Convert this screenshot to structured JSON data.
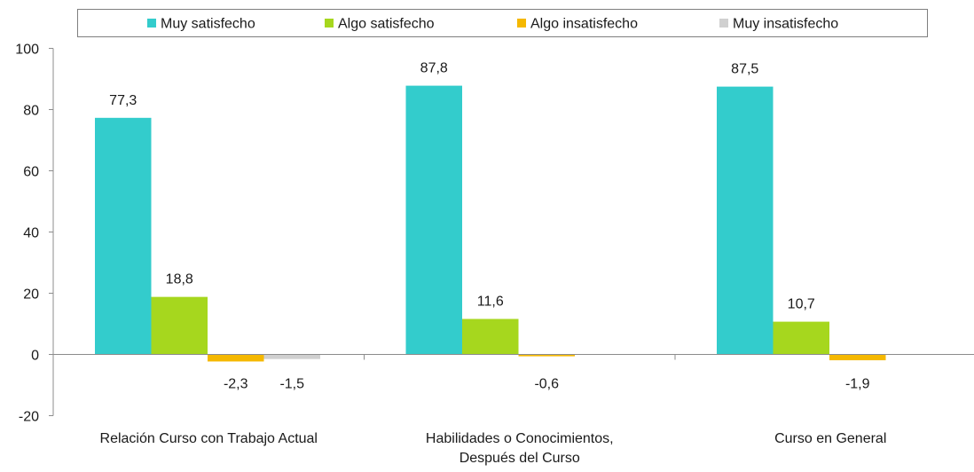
{
  "chart_data": {
    "type": "bar",
    "categories": [
      [
        "Relación Curso con Trabajo Actual"
      ],
      [
        "Habilidades o Conocimientos,",
        "Después del Curso"
      ],
      [
        "Curso en General"
      ]
    ],
    "series": [
      {
        "name": "Muy satisfecho",
        "color": "#33CCCC",
        "values": [
          77.3,
          87.8,
          87.5
        ],
        "labels": [
          "77,3",
          "87,8",
          "87,5"
        ]
      },
      {
        "name": "Algo satisfecho",
        "color": "#A6D71E",
        "values": [
          18.8,
          11.6,
          10.7
        ],
        "labels": [
          "18,8",
          "11,6",
          "10,7"
        ]
      },
      {
        "name": "Algo insatisfecho",
        "color": "#F5B800",
        "values": [
          -2.3,
          -0.6,
          -1.9
        ],
        "labels": [
          "-2,3",
          "-0,6",
          "-1,9"
        ]
      },
      {
        "name": "Muy insatisfecho",
        "color": "#D0D0D0",
        "values": [
          -1.5,
          null,
          null
        ],
        "labels": [
          "-1,5",
          null,
          null
        ]
      }
    ],
    "yticks": [
      "100",
      "80",
      "60",
      "40",
      "20",
      "0",
      "-20"
    ],
    "ylim": [
      -20,
      100
    ],
    "legend_position": "top",
    "grid": false
  }
}
